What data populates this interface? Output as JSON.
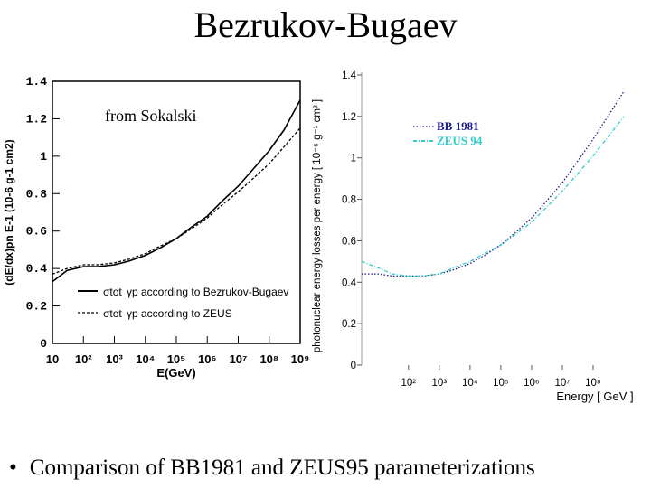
{
  "slide": {
    "title": "Bezrukov-Bugaev",
    "bullet_marker": "•",
    "bullet": "Comparison of BB1981 and ZEUS95 parameterizations"
  },
  "chart_data": [
    {
      "type": "line",
      "annotation": "from Sokalski",
      "xlabel": "E(GeV)",
      "ylabel": "(dE/dx)pn E-1 (10-6 g-1 cm2)",
      "x_scale": "log",
      "xlim": [
        10,
        1000000000
      ],
      "ylim": [
        0,
        1.4
      ],
      "x_ticks": [
        10,
        100,
        1000,
        10000,
        100000,
        1000000,
        10000000,
        100000000,
        1000000000
      ],
      "x_tick_labels": [
        "10",
        "10²",
        "10³",
        "10⁴",
        "10⁵",
        "10⁶",
        "10⁷",
        "10⁸",
        "10⁹"
      ],
      "y_ticks": [
        0,
        0.2,
        0.4,
        0.6,
        0.8,
        1,
        1.2,
        1.4
      ],
      "y_tick_labels": [
        "0",
        "0.2",
        "0.4",
        "0.6",
        "0.8",
        "1",
        "1.2",
        "1.4"
      ],
      "legend_placement": "bottom-left",
      "series": [
        {
          "legend_prefix": "σtot",
          "legend_text": "γp according to Bezrukov-Bugaev",
          "style": "solid",
          "color": "#000000",
          "x": [
            10,
            30,
            100,
            300,
            1000,
            3000,
            10000,
            30000,
            100000,
            300000,
            1000000,
            3000000,
            10000000,
            30000000,
            100000000,
            300000000,
            1000000000
          ],
          "y": [
            0.33,
            0.39,
            0.41,
            0.41,
            0.42,
            0.44,
            0.47,
            0.51,
            0.56,
            0.62,
            0.68,
            0.76,
            0.84,
            0.93,
            1.03,
            1.14,
            1.3
          ]
        },
        {
          "legend_prefix": "σtot",
          "legend_text": "γp according to ZEUS",
          "style": "dashed",
          "color": "#000000",
          "x": [
            10,
            30,
            100,
            300,
            1000,
            3000,
            10000,
            30000,
            100000,
            300000,
            1000000,
            3000000,
            10000000,
            30000000,
            100000000,
            300000000,
            1000000000
          ],
          "y": [
            0.37,
            0.4,
            0.42,
            0.42,
            0.43,
            0.45,
            0.48,
            0.52,
            0.56,
            0.61,
            0.67,
            0.74,
            0.81,
            0.88,
            0.96,
            1.05,
            1.15
          ]
        }
      ]
    },
    {
      "type": "line",
      "xlabel": "Energy [ GeV ]",
      "ylabel": "photonuclear energy losses per energy [ 10⁻⁶ g⁻¹ cm² ]",
      "x_scale": "log",
      "xlim": [
        3,
        1000000000
      ],
      "ylim": [
        0,
        1.4
      ],
      "x_ticks": [
        100,
        1000,
        10000,
        100000,
        1000000,
        10000000,
        100000000
      ],
      "x_tick_labels": [
        "10²",
        "10³",
        "10⁴",
        "10⁵",
        "10⁶",
        "10⁷",
        "10⁸"
      ],
      "y_ticks": [
        0,
        0.2,
        0.4,
        0.6,
        0.8,
        1,
        1.2,
        1.4
      ],
      "y_tick_labels": [
        "0",
        "0.2",
        "0.4",
        "0.6",
        "0.8",
        "1",
        "1.2",
        "1.4"
      ],
      "legend_placement": "top-left",
      "series": [
        {
          "name": "BB 1981",
          "style": "dotted",
          "color": "#1a1a8c",
          "x": [
            3,
            10,
            30,
            100,
            300,
            1000,
            3000,
            10000,
            30000,
            100000,
            300000,
            1000000,
            3000000,
            10000000,
            30000000,
            100000000,
            300000000,
            1000000000
          ],
          "y": [
            0.44,
            0.44,
            0.43,
            0.43,
            0.43,
            0.44,
            0.46,
            0.49,
            0.53,
            0.58,
            0.64,
            0.71,
            0.79,
            0.88,
            0.98,
            1.09,
            1.2,
            1.32
          ]
        },
        {
          "name": "ZEUS 94",
          "style": "dash-dot",
          "color": "#33cccc",
          "x": [
            3,
            10,
            30,
            100,
            300,
            1000,
            3000,
            10000,
            30000,
            100000,
            300000,
            1000000,
            3000000,
            10000000,
            30000000,
            100000000,
            300000000,
            1000000000
          ],
          "y": [
            0.5,
            0.47,
            0.44,
            0.43,
            0.43,
            0.44,
            0.47,
            0.5,
            0.54,
            0.58,
            0.63,
            0.69,
            0.76,
            0.84,
            0.92,
            1.01,
            1.1,
            1.2
          ]
        }
      ]
    }
  ]
}
